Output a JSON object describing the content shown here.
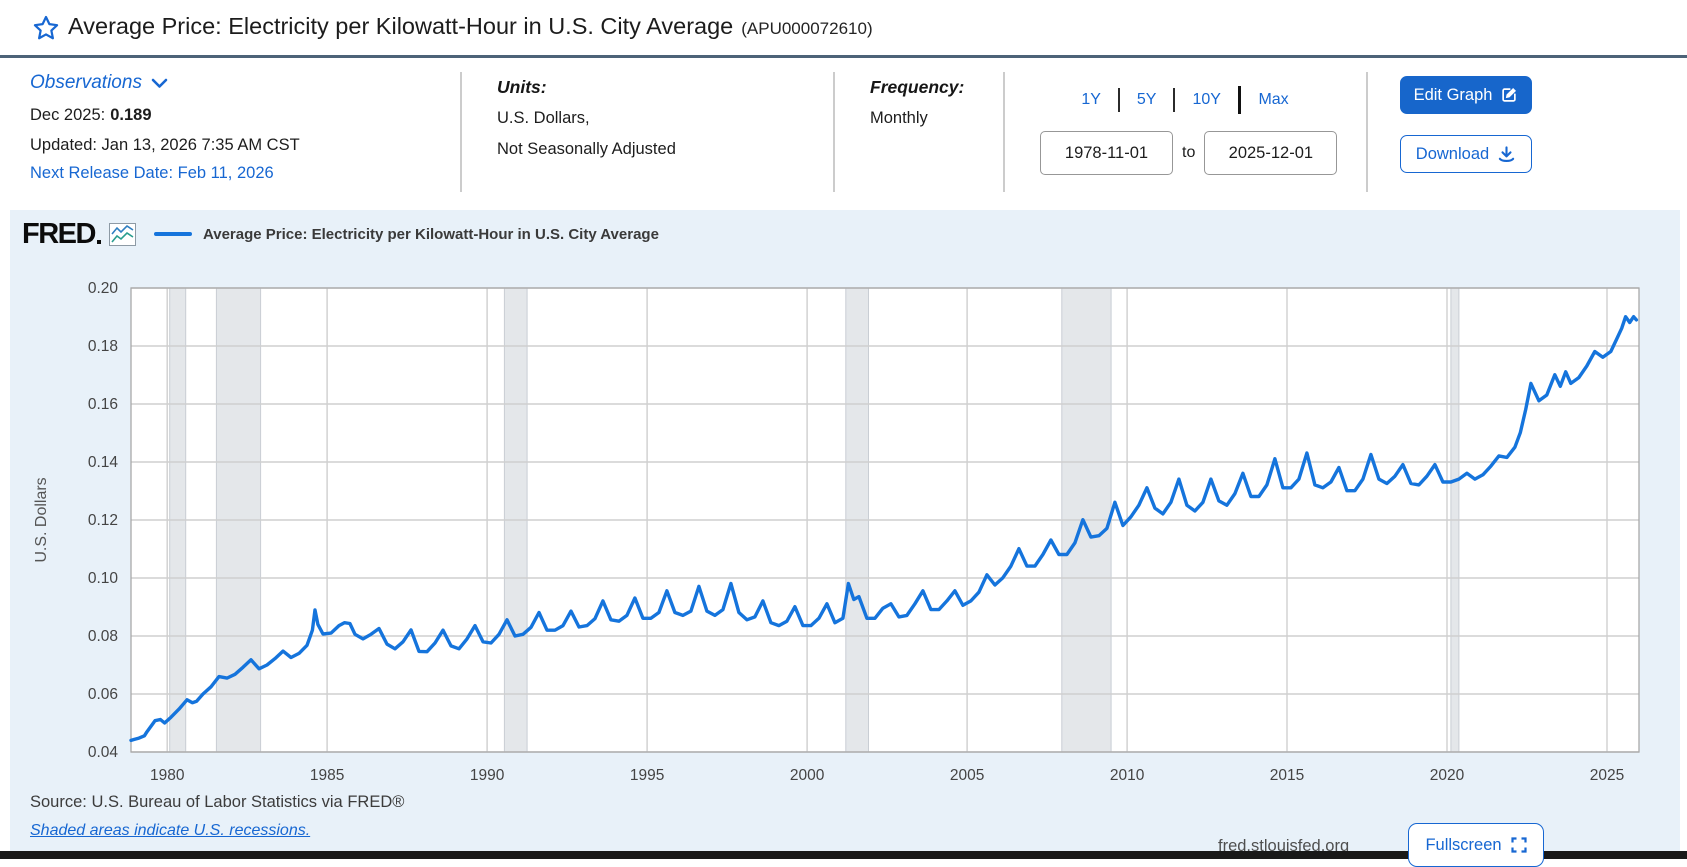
{
  "page": {
    "title": "Average Price: Electricity per Kilowatt-Hour in U.S. City Average",
    "series_id": "(APU000072610)"
  },
  "meta": {
    "observations": {
      "label": "Observations",
      "latest_period": "Dec 2025:",
      "latest_value": "0.189",
      "updated": "Updated: Jan 13, 2026 7:35 AM CST",
      "next_release": "Next Release Date: Feb 11, 2026"
    },
    "units": {
      "label": "Units:",
      "line1": "U.S. Dollars,",
      "line2": "Not Seasonally Adjusted"
    },
    "frequency": {
      "label": "Frequency:",
      "value": "Monthly"
    },
    "range": {
      "options": [
        "1Y",
        "5Y",
        "10Y",
        "Max"
      ],
      "start_date": "1978-11-01",
      "to_label": "to",
      "end_date": "2025-12-01"
    },
    "buttons": {
      "edit": "Edit Graph",
      "download": "Download"
    }
  },
  "chart": {
    "brand": "FRED",
    "legend": "Average Price: Electricity per Kilowatt-Hour in U.S. City Average",
    "source": "Source: U.S. Bureau of Labor Statistics via FRED®",
    "shaded_note": "Shaded areas indicate U.S. recessions.",
    "site": "fred.stlouisfed.org",
    "fullscreen_label": "Fullscreen"
  },
  "colors": {
    "accent_blue": "#1767d2",
    "line_blue": "#1574dc",
    "chart_bg": "#e8f1f9",
    "recession_fill": "#e4e7ea",
    "grid": "#cfcfcf"
  },
  "chart_data": {
    "type": "line",
    "title": "Average Price: Electricity per Kilowatt-Hour in U.S. City Average",
    "xlabel": "",
    "ylabel": "U.S. Dollars",
    "x_range": [
      1978.87,
      2026.0
    ],
    "ylim": [
      0.04,
      0.2
    ],
    "y_ticks": [
      0.04,
      0.06,
      0.08,
      0.1,
      0.12,
      0.14,
      0.16,
      0.18,
      0.2
    ],
    "x_ticks": [
      1980,
      1985,
      1990,
      1995,
      2000,
      2005,
      2010,
      2015,
      2020,
      2025
    ],
    "grid": true,
    "legend_position": "top-left",
    "line_color": "#1574dc",
    "recessions": [
      [
        1980.08,
        1980.58
      ],
      [
        1981.54,
        1982.92
      ],
      [
        1990.54,
        1991.25
      ],
      [
        2001.21,
        2001.92
      ],
      [
        2007.96,
        2009.5
      ],
      [
        2020.12,
        2020.37
      ]
    ],
    "points": [
      [
        1978.87,
        0.044
      ],
      [
        1978.96,
        0.0443
      ],
      [
        1979.12,
        0.0448
      ],
      [
        1979.29,
        0.0456
      ],
      [
        1979.37,
        0.047
      ],
      [
        1979.62,
        0.0508
      ],
      [
        1979.79,
        0.0512
      ],
      [
        1979.92,
        0.05
      ],
      [
        1980.12,
        0.052
      ],
      [
        1980.37,
        0.0548
      ],
      [
        1980.62,
        0.058
      ],
      [
        1980.79,
        0.057
      ],
      [
        1980.92,
        0.0575
      ],
      [
        1981.12,
        0.06
      ],
      [
        1981.37,
        0.0625
      ],
      [
        1981.62,
        0.066
      ],
      [
        1981.87,
        0.0655
      ],
      [
        1982.12,
        0.0668
      ],
      [
        1982.37,
        0.0692
      ],
      [
        1982.62,
        0.0718
      ],
      [
        1982.87,
        0.0687
      ],
      [
        1983.12,
        0.07
      ],
      [
        1983.37,
        0.0722
      ],
      [
        1983.62,
        0.0748
      ],
      [
        1983.87,
        0.0726
      ],
      [
        1984.12,
        0.074
      ],
      [
        1984.37,
        0.0768
      ],
      [
        1984.54,
        0.082
      ],
      [
        1984.62,
        0.089
      ],
      [
        1984.71,
        0.084
      ],
      [
        1984.87,
        0.0807
      ],
      [
        1985.12,
        0.081
      ],
      [
        1985.37,
        0.0836
      ],
      [
        1985.54,
        0.0846
      ],
      [
        1985.71,
        0.0843
      ],
      [
        1985.87,
        0.0806
      ],
      [
        1986.12,
        0.079
      ],
      [
        1986.37,
        0.0806
      ],
      [
        1986.62,
        0.0826
      ],
      [
        1986.87,
        0.0772
      ],
      [
        1987.12,
        0.0756
      ],
      [
        1987.37,
        0.078
      ],
      [
        1987.62,
        0.0821
      ],
      [
        1987.87,
        0.0747
      ],
      [
        1988.12,
        0.0746
      ],
      [
        1988.37,
        0.0776
      ],
      [
        1988.62,
        0.082
      ],
      [
        1988.87,
        0.0766
      ],
      [
        1989.12,
        0.0756
      ],
      [
        1989.37,
        0.079
      ],
      [
        1989.62,
        0.0836
      ],
      [
        1989.87,
        0.078
      ],
      [
        1990.12,
        0.0776
      ],
      [
        1990.37,
        0.0806
      ],
      [
        1990.62,
        0.0856
      ],
      [
        1990.87,
        0.08
      ],
      [
        1991.12,
        0.0806
      ],
      [
        1991.37,
        0.083
      ],
      [
        1991.62,
        0.0881
      ],
      [
        1991.87,
        0.082
      ],
      [
        1992.12,
        0.082
      ],
      [
        1992.37,
        0.0836
      ],
      [
        1992.62,
        0.0886
      ],
      [
        1992.87,
        0.0831
      ],
      [
        1993.12,
        0.0836
      ],
      [
        1993.37,
        0.086
      ],
      [
        1993.62,
        0.0921
      ],
      [
        1993.87,
        0.0856
      ],
      [
        1994.12,
        0.0851
      ],
      [
        1994.37,
        0.0871
      ],
      [
        1994.62,
        0.0931
      ],
      [
        1994.87,
        0.0861
      ],
      [
        1995.12,
        0.0861
      ],
      [
        1995.37,
        0.0881
      ],
      [
        1995.62,
        0.0956
      ],
      [
        1995.87,
        0.0881
      ],
      [
        1996.12,
        0.0871
      ],
      [
        1996.37,
        0.0886
      ],
      [
        1996.62,
        0.0971
      ],
      [
        1996.87,
        0.0886
      ],
      [
        1997.12,
        0.0871
      ],
      [
        1997.37,
        0.0891
      ],
      [
        1997.62,
        0.0981
      ],
      [
        1997.87,
        0.0881
      ],
      [
        1998.12,
        0.0856
      ],
      [
        1998.37,
        0.0866
      ],
      [
        1998.62,
        0.0921
      ],
      [
        1998.87,
        0.0846
      ],
      [
        1999.12,
        0.0836
      ],
      [
        1999.37,
        0.0851
      ],
      [
        1999.62,
        0.0901
      ],
      [
        1999.87,
        0.0836
      ],
      [
        2000.12,
        0.0836
      ],
      [
        2000.37,
        0.0861
      ],
      [
        2000.62,
        0.0911
      ],
      [
        2000.87,
        0.0846
      ],
      [
        2001.12,
        0.0861
      ],
      [
        2001.29,
        0.0981
      ],
      [
        2001.46,
        0.0926
      ],
      [
        2001.62,
        0.0936
      ],
      [
        2001.87,
        0.0861
      ],
      [
        2002.12,
        0.0861
      ],
      [
        2002.37,
        0.0896
      ],
      [
        2002.62,
        0.0911
      ],
      [
        2002.87,
        0.0866
      ],
      [
        2003.12,
        0.0871
      ],
      [
        2003.37,
        0.0911
      ],
      [
        2003.62,
        0.0956
      ],
      [
        2003.87,
        0.0891
      ],
      [
        2004.12,
        0.0891
      ],
      [
        2004.37,
        0.0921
      ],
      [
        2004.62,
        0.0956
      ],
      [
        2004.87,
        0.0906
      ],
      [
        2005.12,
        0.0921
      ],
      [
        2005.37,
        0.0951
      ],
      [
        2005.62,
        0.1011
      ],
      [
        2005.87,
        0.0976
      ],
      [
        2006.12,
        0.1001
      ],
      [
        2006.37,
        0.1041
      ],
      [
        2006.62,
        0.1101
      ],
      [
        2006.87,
        0.1041
      ],
      [
        2007.12,
        0.1041
      ],
      [
        2007.37,
        0.1081
      ],
      [
        2007.62,
        0.1131
      ],
      [
        2007.87,
        0.1081
      ],
      [
        2008.12,
        0.1081
      ],
      [
        2008.37,
        0.1121
      ],
      [
        2008.62,
        0.1201
      ],
      [
        2008.87,
        0.1141
      ],
      [
        2009.12,
        0.1146
      ],
      [
        2009.37,
        0.1171
      ],
      [
        2009.62,
        0.1261
      ],
      [
        2009.87,
        0.1181
      ],
      [
        2010.12,
        0.1211
      ],
      [
        2010.37,
        0.1251
      ],
      [
        2010.62,
        0.1311
      ],
      [
        2010.87,
        0.1241
      ],
      [
        2011.12,
        0.1221
      ],
      [
        2011.37,
        0.1261
      ],
      [
        2011.62,
        0.1341
      ],
      [
        2011.87,
        0.1251
      ],
      [
        2012.12,
        0.1231
      ],
      [
        2012.37,
        0.1261
      ],
      [
        2012.62,
        0.1341
      ],
      [
        2012.87,
        0.1266
      ],
      [
        2013.12,
        0.1251
      ],
      [
        2013.37,
        0.1291
      ],
      [
        2013.62,
        0.1361
      ],
      [
        2013.87,
        0.1281
      ],
      [
        2014.12,
        0.1281
      ],
      [
        2014.37,
        0.1321
      ],
      [
        2014.62,
        0.1411
      ],
      [
        2014.87,
        0.1311
      ],
      [
        2015.12,
        0.1311
      ],
      [
        2015.37,
        0.1341
      ],
      [
        2015.62,
        0.1431
      ],
      [
        2015.87,
        0.1321
      ],
      [
        2016.12,
        0.1311
      ],
      [
        2016.37,
        0.1331
      ],
      [
        2016.62,
        0.1381
      ],
      [
        2016.87,
        0.1301
      ],
      [
        2017.12,
        0.1301
      ],
      [
        2017.37,
        0.1341
      ],
      [
        2017.62,
        0.1426
      ],
      [
        2017.87,
        0.1341
      ],
      [
        2018.12,
        0.1326
      ],
      [
        2018.37,
        0.1351
      ],
      [
        2018.62,
        0.1391
      ],
      [
        2018.87,
        0.1326
      ],
      [
        2019.12,
        0.1321
      ],
      [
        2019.37,
        0.1351
      ],
      [
        2019.62,
        0.1391
      ],
      [
        2019.87,
        0.1331
      ],
      [
        2020.12,
        0.1331
      ],
      [
        2020.37,
        0.1341
      ],
      [
        2020.62,
        0.1361
      ],
      [
        2020.87,
        0.1341
      ],
      [
        2021.12,
        0.1356
      ],
      [
        2021.37,
        0.1386
      ],
      [
        2021.62,
        0.1421
      ],
      [
        2021.87,
        0.1416
      ],
      [
        2022.12,
        0.1451
      ],
      [
        2022.29,
        0.1501
      ],
      [
        2022.46,
        0.1581
      ],
      [
        2022.62,
        0.1671
      ],
      [
        2022.87,
        0.1611
      ],
      [
        2023.12,
        0.1631
      ],
      [
        2023.37,
        0.1701
      ],
      [
        2023.54,
        0.1661
      ],
      [
        2023.71,
        0.1711
      ],
      [
        2023.87,
        0.1671
      ],
      [
        2024.12,
        0.1691
      ],
      [
        2024.37,
        0.1731
      ],
      [
        2024.62,
        0.1781
      ],
      [
        2024.87,
        0.1761
      ],
      [
        2025.12,
        0.1781
      ],
      [
        2025.29,
        0.1821
      ],
      [
        2025.46,
        0.1861
      ],
      [
        2025.58,
        0.1901
      ],
      [
        2025.71,
        0.1881
      ],
      [
        2025.83,
        0.1901
      ],
      [
        2025.92,
        0.189
      ]
    ]
  }
}
